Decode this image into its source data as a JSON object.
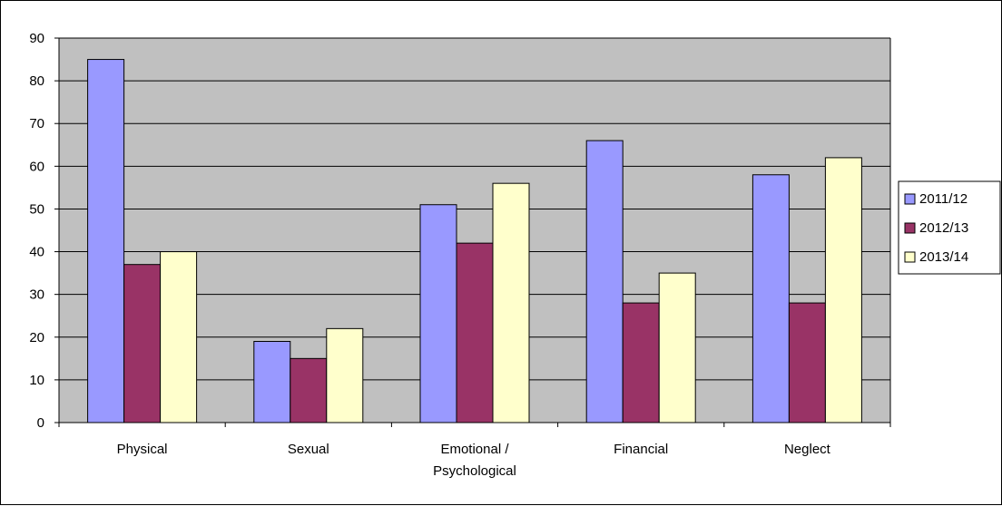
{
  "chart_data": {
    "type": "bar",
    "categories": [
      "Physical",
      "Sexual",
      "Emotional / Psychological",
      "Financial",
      "Neglect"
    ],
    "category_lines": [
      [
        "Physical"
      ],
      [
        "Sexual"
      ],
      [
        "Emotional /",
        "Psychological"
      ],
      [
        "Financial"
      ],
      [
        "Neglect"
      ]
    ],
    "series": [
      {
        "name": "2011/12",
        "color": "#9999ff",
        "values": [
          85,
          19,
          51,
          66,
          58
        ]
      },
      {
        "name": "2012/13",
        "color": "#993366",
        "values": [
          37,
          15,
          42,
          28,
          28
        ]
      },
      {
        "name": "2013/14",
        "color": "#ffffcc",
        "values": [
          40,
          22,
          56,
          35,
          62
        ]
      }
    ],
    "ylim": [
      0,
      90
    ],
    "yticks": [
      0,
      10,
      20,
      30,
      40,
      50,
      60,
      70,
      80,
      90
    ],
    "grid": true,
    "plot_background": "#c0c0c0",
    "legend_position": "right",
    "title": "",
    "xlabel": "",
    "ylabel": ""
  }
}
